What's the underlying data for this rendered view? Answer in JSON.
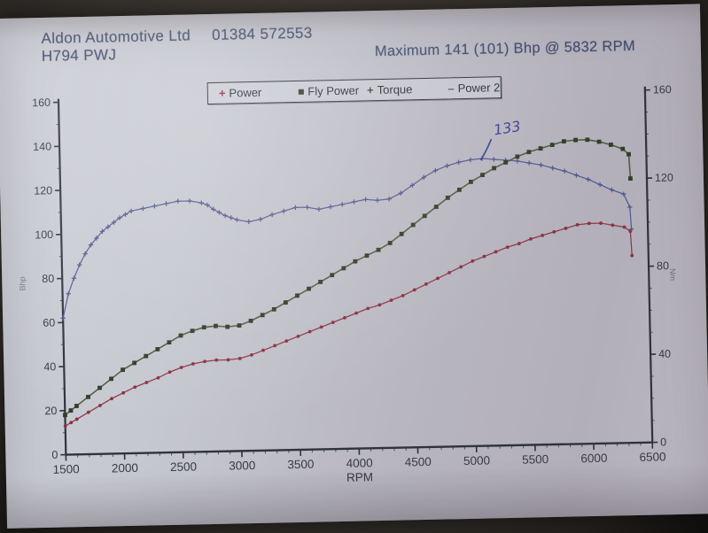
{
  "header": {
    "company": "Aldon Automotive Ltd",
    "phone": "01384 572553",
    "registration": "H794 PWJ",
    "max_result": "Maximum 141 (101) Bhp @ 5832 RPM"
  },
  "chart_data": {
    "type": "line",
    "title": "",
    "xlabel": "RPM",
    "ylabel_left": "Bhp",
    "ylabel_right": "Nm",
    "xlim": [
      1500,
      6500
    ],
    "ylim_left": [
      0,
      160
    ],
    "ylim_right": [
      0,
      160
    ],
    "x_major_ticks": [
      1500,
      2000,
      2500,
      3000,
      3500,
      4000,
      4500,
      5000,
      5500,
      6000,
      6500
    ],
    "x_minor_step": 100,
    "y_ticks_left": [
      0,
      20,
      40,
      60,
      80,
      100,
      120,
      140,
      160
    ],
    "y_ticks_right": [
      0,
      40,
      80,
      120,
      160
    ],
    "y_minor_step": 10,
    "grid": false,
    "legend": {
      "position": "top",
      "items": [
        {
          "label": "Power",
          "marker": "plus",
          "color": "#8b3040"
        },
        {
          "label": "Fly Power",
          "marker": "square",
          "color": "#333d2a"
        },
        {
          "label": "Torque",
          "marker": "plus",
          "color": "#3f4a40"
        },
        {
          "label": "Power 2",
          "marker": "dash",
          "color": "#51558d"
        }
      ]
    },
    "annotations": [
      {
        "text": "133",
        "rpm": 5210,
        "value": 141,
        "arrow_from_rpm": 5090,
        "arrow_from_value": 130,
        "ink_color": "#3d4293"
      }
    ],
    "series": [
      {
        "name": "Power",
        "color": "#8b3040",
        "marker": "dot",
        "points": [
          [
            1500,
            13
          ],
          [
            1550,
            14.5
          ],
          [
            1600,
            16
          ],
          [
            1700,
            19
          ],
          [
            1800,
            22
          ],
          [
            1900,
            25
          ],
          [
            2000,
            27.5
          ],
          [
            2100,
            30
          ],
          [
            2200,
            32
          ],
          [
            2300,
            34
          ],
          [
            2400,
            36.5
          ],
          [
            2500,
            38.5
          ],
          [
            2600,
            40
          ],
          [
            2700,
            41
          ],
          [
            2800,
            41.5
          ],
          [
            2900,
            41.5
          ],
          [
            3000,
            42
          ],
          [
            3100,
            43.5
          ],
          [
            3200,
            45.5
          ],
          [
            3300,
            47.5
          ],
          [
            3400,
            49.5
          ],
          [
            3500,
            51.5
          ],
          [
            3600,
            53.5
          ],
          [
            3700,
            55.5
          ],
          [
            3800,
            57.5
          ],
          [
            3900,
            59.5
          ],
          [
            4000,
            61.5
          ],
          [
            4100,
            63.5
          ],
          [
            4200,
            65
          ],
          [
            4300,
            67
          ],
          [
            4400,
            69
          ],
          [
            4500,
            71.5
          ],
          [
            4600,
            74
          ],
          [
            4700,
            76.5
          ],
          [
            4800,
            79
          ],
          [
            4900,
            81.5
          ],
          [
            5000,
            84
          ],
          [
            5100,
            86
          ],
          [
            5200,
            88
          ],
          [
            5300,
            90
          ],
          [
            5400,
            91.5
          ],
          [
            5500,
            93.5
          ],
          [
            5600,
            95
          ],
          [
            5700,
            96.5
          ],
          [
            5800,
            98
          ],
          [
            5900,
            99.5
          ],
          [
            6000,
            100
          ],
          [
            6100,
            100
          ],
          [
            6200,
            99
          ],
          [
            6300,
            98
          ],
          [
            6350,
            96
          ],
          [
            6360,
            85
          ]
        ]
      },
      {
        "name": "Power 2",
        "color": "#51558d",
        "marker": "plus",
        "points": [
          [
            1500,
            62
          ],
          [
            1550,
            73
          ],
          [
            1600,
            80
          ],
          [
            1650,
            86
          ],
          [
            1700,
            91
          ],
          [
            1750,
            95
          ],
          [
            1800,
            98
          ],
          [
            1850,
            101
          ],
          [
            1900,
            103
          ],
          [
            1950,
            105
          ],
          [
            2000,
            107
          ],
          [
            2050,
            108.5
          ],
          [
            2100,
            110
          ],
          [
            2200,
            111
          ],
          [
            2300,
            112
          ],
          [
            2400,
            113
          ],
          [
            2500,
            114
          ],
          [
            2600,
            114
          ],
          [
            2700,
            113
          ],
          [
            2750,
            112
          ],
          [
            2800,
            110
          ],
          [
            2850,
            108.5
          ],
          [
            2900,
            107
          ],
          [
            2950,
            106
          ],
          [
            3000,
            105
          ],
          [
            3100,
            104
          ],
          [
            3200,
            105
          ],
          [
            3300,
            107
          ],
          [
            3400,
            108.5
          ],
          [
            3500,
            110
          ],
          [
            3600,
            110
          ],
          [
            3700,
            109
          ],
          [
            3800,
            110
          ],
          [
            3900,
            111
          ],
          [
            4000,
            112
          ],
          [
            4100,
            113
          ],
          [
            4200,
            112.5
          ],
          [
            4300,
            113
          ],
          [
            4400,
            115.5
          ],
          [
            4500,
            119
          ],
          [
            4600,
            122.5
          ],
          [
            4700,
            125.5
          ],
          [
            4800,
            127.5
          ],
          [
            4900,
            129
          ],
          [
            5000,
            130
          ],
          [
            5100,
            130.5
          ],
          [
            5200,
            130
          ],
          [
            5300,
            129.5
          ],
          [
            5400,
            129
          ],
          [
            5500,
            128
          ],
          [
            5600,
            127
          ],
          [
            5700,
            125.5
          ],
          [
            5800,
            124
          ],
          [
            5900,
            122
          ],
          [
            6000,
            120
          ],
          [
            6100,
            117.5
          ],
          [
            6200,
            115
          ],
          [
            6300,
            113
          ],
          [
            6350,
            107
          ],
          [
            6360,
            97
          ]
        ]
      },
      {
        "name": "Fly Power",
        "color": "#4c5a38",
        "marker": "square",
        "marker_color": "#333d2a",
        "points": [
          [
            1500,
            18
          ],
          [
            1550,
            20
          ],
          [
            1600,
            22
          ],
          [
            1700,
            26
          ],
          [
            1800,
            30
          ],
          [
            1900,
            34
          ],
          [
            2000,
            38
          ],
          [
            2100,
            41
          ],
          [
            2200,
            44
          ],
          [
            2300,
            47
          ],
          [
            2400,
            50
          ],
          [
            2500,
            53
          ],
          [
            2600,
            55
          ],
          [
            2700,
            56.5
          ],
          [
            2800,
            57
          ],
          [
            2900,
            56.5
          ],
          [
            3000,
            57
          ],
          [
            3100,
            59
          ],
          [
            3200,
            61.5
          ],
          [
            3300,
            64
          ],
          [
            3400,
            67
          ],
          [
            3500,
            70
          ],
          [
            3600,
            73
          ],
          [
            3700,
            76
          ],
          [
            3800,
            79
          ],
          [
            3900,
            82
          ],
          [
            4000,
            85
          ],
          [
            4100,
            87.5
          ],
          [
            4200,
            90
          ],
          [
            4300,
            93
          ],
          [
            4400,
            97
          ],
          [
            4500,
            101
          ],
          [
            4600,
            105
          ],
          [
            4700,
            109
          ],
          [
            4800,
            113
          ],
          [
            4900,
            116.5
          ],
          [
            5000,
            120
          ],
          [
            5100,
            123
          ],
          [
            5200,
            126
          ],
          [
            5300,
            128.5
          ],
          [
            5400,
            131
          ],
          [
            5500,
            133
          ],
          [
            5600,
            134.5
          ],
          [
            5700,
            136
          ],
          [
            5800,
            137.5
          ],
          [
            5900,
            138
          ],
          [
            6000,
            138
          ],
          [
            6100,
            137
          ],
          [
            6200,
            135.5
          ],
          [
            6300,
            133.5
          ],
          [
            6350,
            131
          ],
          [
            6360,
            120
          ]
        ]
      }
    ]
  }
}
